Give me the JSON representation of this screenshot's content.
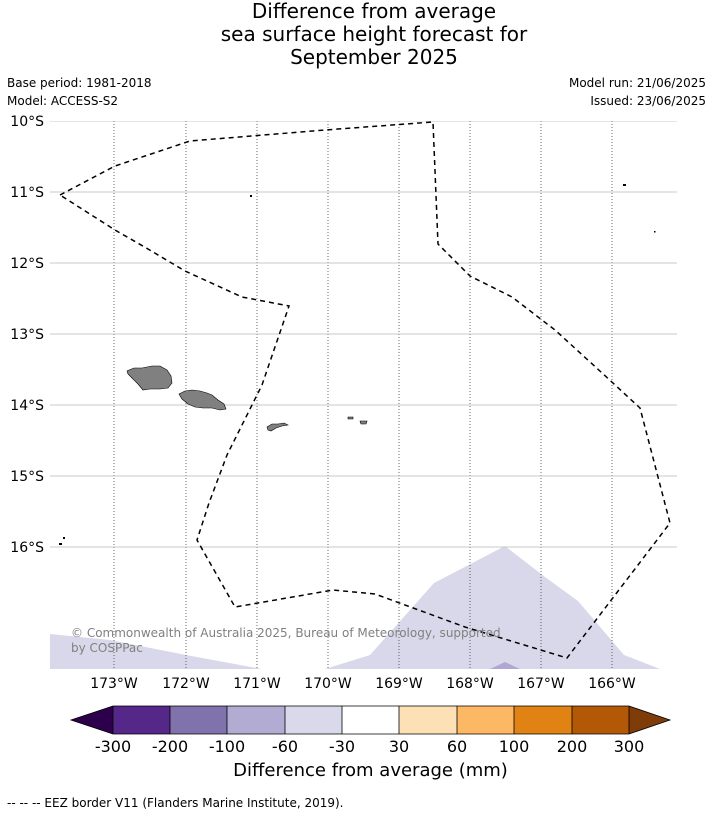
{
  "title": {
    "line1": "Difference from average",
    "line2": "sea surface height forecast for",
    "line3": "September 2025"
  },
  "meta": {
    "base_period": "Base period: 1981-2018",
    "model": "Model: ACCESS-S2",
    "model_run": "Model run: 21/06/2025",
    "issued": "Issued: 23/06/2025"
  },
  "map": {
    "lat_labels": [
      "10°S",
      "11°S",
      "12°S",
      "13°S",
      "14°S",
      "15°S",
      "16°S"
    ],
    "lon_labels": [
      "173°W",
      "172°W",
      "171°W",
      "170°W",
      "169°W",
      "168°W",
      "167°W",
      "166°W"
    ],
    "copyright": "© Commonwealth of Australia 2025, Bureau of Meteorology, supported by COSPPac",
    "colors": {
      "land": "#808080",
      "shade_light": "#d8d8ea",
      "shade_medium": "#b0a8d3"
    }
  },
  "colorbar": {
    "title": "Difference from average (mm)",
    "labels": [
      "-300",
      "-200",
      "-100",
      "-60",
      "-30",
      "30",
      "60",
      "100",
      "200",
      "300"
    ],
    "colors": [
      "#2d004b",
      "#542788",
      "#8073ac",
      "#b2abd2",
      "#d8daeb",
      "#ffffff",
      "#fee0b6",
      "#fdb863",
      "#e08214",
      "#b35806",
      "#7f3b08"
    ]
  },
  "footnote": "-- -- -- EEZ border V11 (Flanders Marine Institute, 2019)."
}
